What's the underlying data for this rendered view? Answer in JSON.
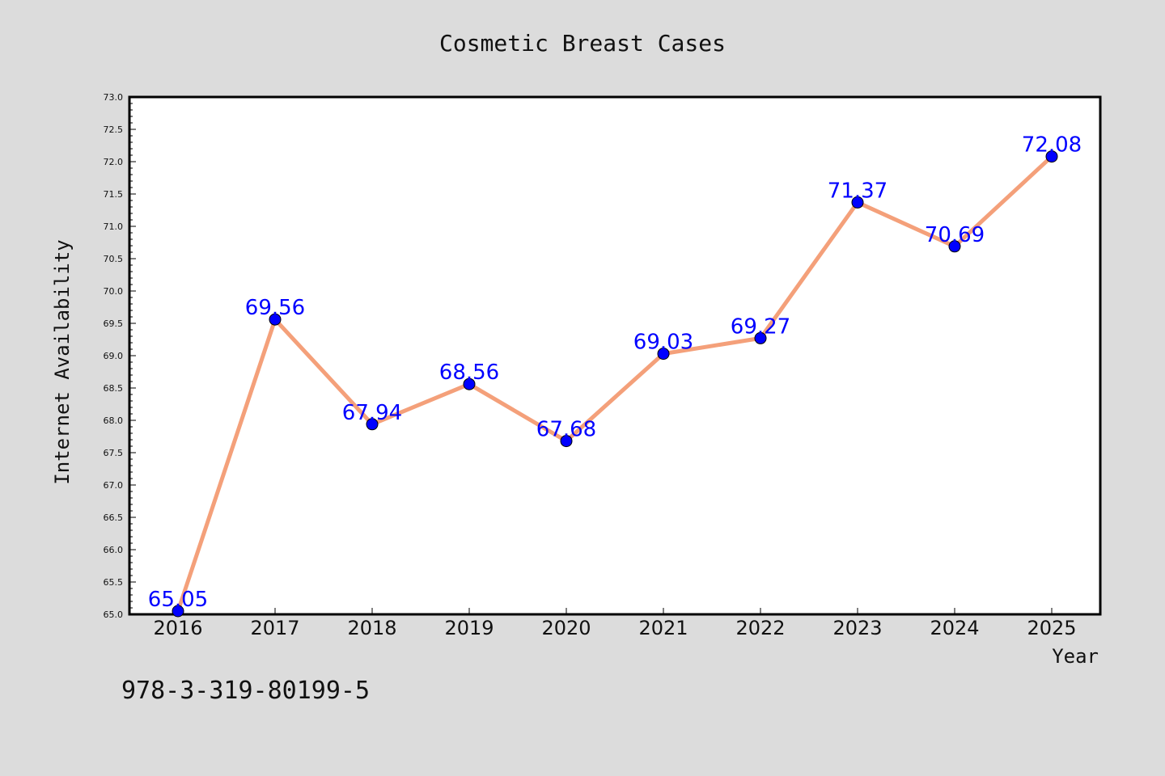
{
  "page": {
    "background": "#dcdcdc",
    "footer_text": "978-3-319-80199-5"
  },
  "chart_data": {
    "type": "line",
    "title": "Cosmetic Breast Cases",
    "xlabel": "Year",
    "ylabel": "Internet Availability",
    "categories": [
      "2016",
      "2017",
      "2018",
      "2019",
      "2020",
      "2021",
      "2022",
      "2023",
      "2024",
      "2025"
    ],
    "series": [
      {
        "values": [
          65.05,
          69.56,
          67.94,
          68.56,
          67.68,
          69.03,
          69.27,
          71.37,
          70.69,
          72.08
        ],
        "line_color": "#f4a07a",
        "marker_color": "#0000ff",
        "label_color": "#0000ff"
      }
    ],
    "ylim": [
      65.0,
      73.0
    ],
    "ytick_step": 0.5,
    "ytick_labels": [
      "65.0",
      "65.5",
      "66.0",
      "66.5",
      "67.0",
      "67.5",
      "68.0",
      "68.5",
      "69.0",
      "69.5",
      "70.0",
      "70.5",
      "71.0",
      "71.5",
      "72.0",
      "72.5",
      "73.0"
    ],
    "grid": false,
    "legend": "none",
    "data_labels": true
  }
}
